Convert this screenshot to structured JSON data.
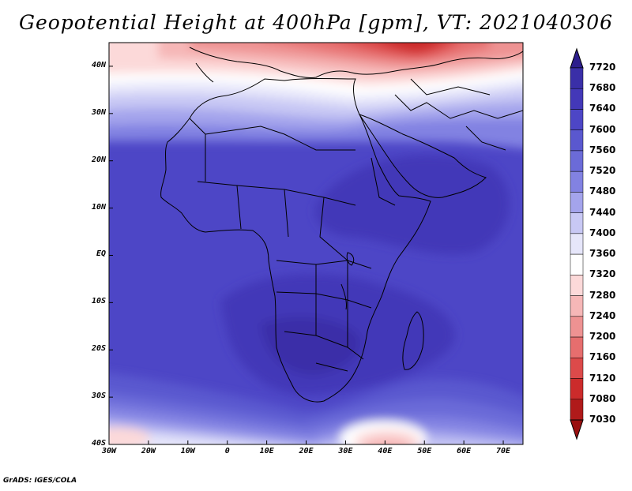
{
  "title": "Geopotential Height at 400hPa [gpm], VT: 2021040306",
  "footer": "GrADS: IGES/COLA",
  "map": {
    "lon_range": [
      -30,
      75
    ],
    "lat_range": [
      -40,
      45
    ],
    "lon_ticks": [
      {
        "value": -30,
        "label": "30W"
      },
      {
        "value": -20,
        "label": "20W"
      },
      {
        "value": -10,
        "label": "10W"
      },
      {
        "value": 0,
        "label": "0"
      },
      {
        "value": 10,
        "label": "10E"
      },
      {
        "value": 20,
        "label": "20E"
      },
      {
        "value": 30,
        "label": "30E"
      },
      {
        "value": 40,
        "label": "40E"
      },
      {
        "value": 50,
        "label": "50E"
      },
      {
        "value": 60,
        "label": "60E"
      },
      {
        "value": 70,
        "label": "70E"
      }
    ],
    "lat_ticks": [
      {
        "value": 40,
        "label": "40N"
      },
      {
        "value": 30,
        "label": "30N"
      },
      {
        "value": 20,
        "label": "20N"
      },
      {
        "value": 10,
        "label": "10N"
      },
      {
        "value": 0,
        "label": "EQ"
      },
      {
        "value": -10,
        "label": "10S"
      },
      {
        "value": -20,
        "label": "20S"
      },
      {
        "value": -30,
        "label": "30S"
      },
      {
        "value": -40,
        "label": "40S"
      }
    ]
  },
  "colorbar": {
    "levels": [
      7720,
      7680,
      7640,
      7600,
      7560,
      7520,
      7480,
      7440,
      7400,
      7360,
      7320,
      7280,
      7240,
      7200,
      7160,
      7120,
      7080,
      7030
    ],
    "colors": [
      "#2d1e8c",
      "#3a2fa8",
      "#4338b8",
      "#4d46c6",
      "#5a58cf",
      "#6b6bd8",
      "#8282e2",
      "#a4a4ec",
      "#c8c8f4",
      "#e6e6fa",
      "#ffffff",
      "#fcd9d9",
      "#f6b7b7",
      "#ee9292",
      "#e66e6e",
      "#dc4a4a",
      "#cc2b2b",
      "#b01a1a",
      "#9a1010"
    ]
  },
  "colors": {
    "frame": "#000000",
    "coast": "#000000"
  }
}
